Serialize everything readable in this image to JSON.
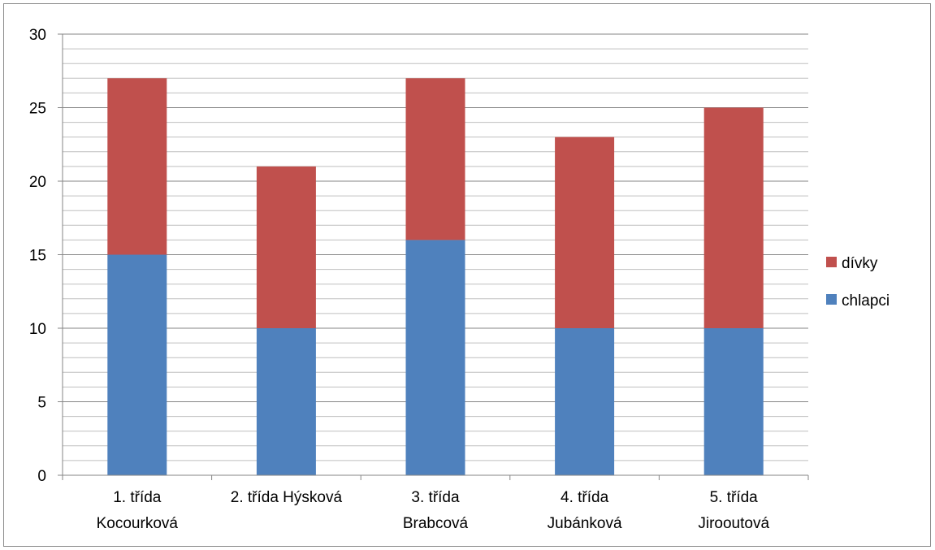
{
  "chart_data": {
    "type": "bar",
    "stacked": true,
    "title": "",
    "xlabel": "",
    "ylabel": "",
    "categories": [
      [
        "1. třída",
        "Kocourková"
      ],
      [
        "2. třída Hýsková"
      ],
      [
        "3. třída",
        "Brabcová"
      ],
      [
        "4. třída",
        "Jubánková"
      ],
      [
        "5. třída",
        "Jirooutová"
      ]
    ],
    "series": [
      {
        "name": "chlapci",
        "color": "#4f81bd",
        "values": [
          15,
          10,
          16,
          10,
          10
        ]
      },
      {
        "name": "dívky",
        "color": "#c0504d",
        "values": [
          12,
          11,
          11,
          13,
          15
        ]
      }
    ],
    "ylim": [
      0,
      30
    ],
    "y_major_step": 5,
    "y_minor_step": 1,
    "y_tick_labels": [
      "0",
      "5",
      "10",
      "15",
      "20",
      "25",
      "30"
    ],
    "grid": true,
    "legend": {
      "position": "right",
      "order": [
        "dívky",
        "chlapci"
      ]
    }
  }
}
